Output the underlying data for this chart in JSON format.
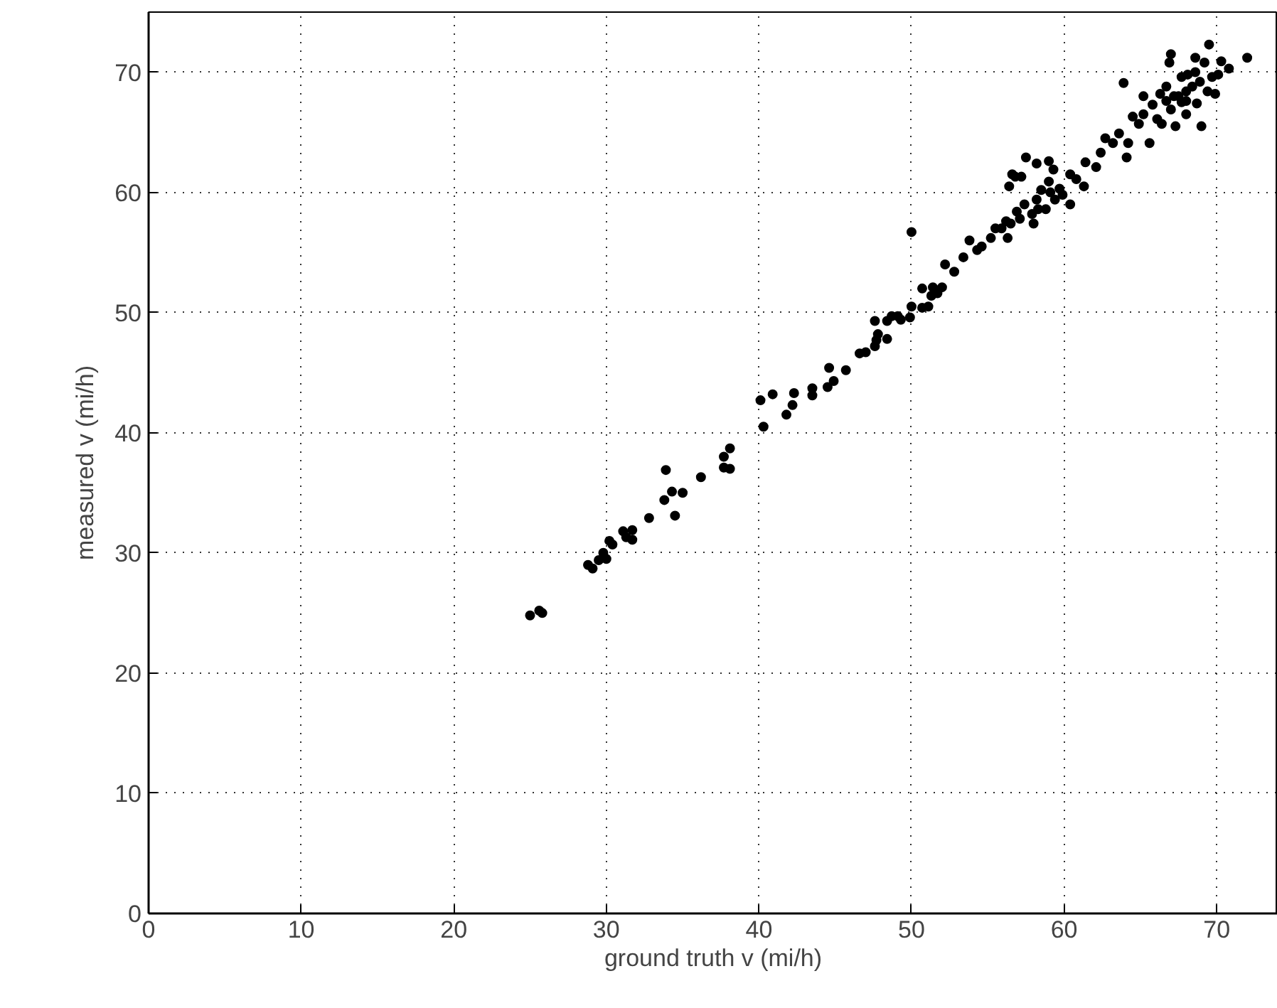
{
  "chart_data": {
    "type": "scatter",
    "xlabel": "ground truth v (mi/h)",
    "ylabel": "measured v (mi/h)",
    "x": [
      25.0,
      25.6,
      25.8,
      28.8,
      29.1,
      29.5,
      29.8,
      30.0,
      30.2,
      30.4,
      31.1,
      31.3,
      31.7,
      31.7,
      32.8,
      33.8,
      34.5,
      33.9,
      34.3,
      35.0,
      36.2,
      37.7,
      37.7,
      38.1,
      38.1,
      40.1,
      40.3,
      40.9,
      41.8,
      42.2,
      42.3,
      43.5,
      43.5,
      44.5,
      44.6,
      44.9,
      45.7,
      46.6,
      47.0,
      47.6,
      47.6,
      47.7,
      47.8,
      48.4,
      48.4,
      48.7,
      49.1,
      49.3,
      49.9,
      50.0,
      50.7,
      51.1,
      51.3,
      51.7,
      50.7,
      51.4,
      52.0,
      50.0,
      52.2,
      52.8,
      53.4,
      53.8,
      54.3,
      54.6,
      55.2,
      55.5,
      56.2,
      56.4,
      56.6,
      56.8,
      57.2,
      57.5,
      58.2,
      59.0,
      59.3,
      56.9,
      57.4,
      57.9,
      58.2,
      58.5,
      58.8,
      59.1,
      59.0,
      56.3,
      55.9,
      56.5,
      57.1,
      58.0,
      58.3,
      59.4,
      59.7,
      59.9,
      60.4,
      60.4,
      60.8,
      61.3,
      61.4,
      62.1,
      62.4,
      62.7,
      63.2,
      63.6,
      63.9,
      64.1,
      64.2,
      64.5,
      64.9,
      65.2,
      65.2,
      65.6,
      65.8,
      66.1,
      66.3,
      66.4,
      66.7,
      66.9,
      67.0,
      67.0,
      67.3,
      67.5,
      67.7,
      68.0,
      68.1,
      68.4,
      68.6,
      68.7,
      68.9,
      69.0,
      69.2,
      69.4,
      69.5,
      69.7,
      69.9,
      70.1,
      70.3,
      70.8,
      72.0,
      67.2,
      68.0,
      68.6,
      68.0,
      66.7,
      67.7
    ],
    "values": [
      24.8,
      25.2,
      25.0,
      29.0,
      28.7,
      29.4,
      30.0,
      29.5,
      31.0,
      30.7,
      31.8,
      31.3,
      31.9,
      31.1,
      32.9,
      34.4,
      33.1,
      36.9,
      35.1,
      35.0,
      36.3,
      38.0,
      37.1,
      37.0,
      38.7,
      42.7,
      40.5,
      43.2,
      41.5,
      42.3,
      43.3,
      43.7,
      43.1,
      43.8,
      45.4,
      44.3,
      45.2,
      46.6,
      46.7,
      47.2,
      49.3,
      47.7,
      48.2,
      47.8,
      49.3,
      49.7,
      49.7,
      49.4,
      49.6,
      50.5,
      50.4,
      50.5,
      51.4,
      51.6,
      52.0,
      52.1,
      52.1,
      56.7,
      54.0,
      53.4,
      54.6,
      56.0,
      55.2,
      55.5,
      56.2,
      57.0,
      57.6,
      60.5,
      61.5,
      61.3,
      61.3,
      62.9,
      62.4,
      62.6,
      61.9,
      58.4,
      59.0,
      58.2,
      59.4,
      60.2,
      58.6,
      60.0,
      60.9,
      56.2,
      57.0,
      57.4,
      57.8,
      57.4,
      58.6,
      59.4,
      60.3,
      59.8,
      59.0,
      61.5,
      61.1,
      60.5,
      62.5,
      62.1,
      63.3,
      64.5,
      64.1,
      64.9,
      69.1,
      62.9,
      64.1,
      66.3,
      65.7,
      66.5,
      68.0,
      64.1,
      67.3,
      66.1,
      68.2,
      65.7,
      68.8,
      70.8,
      71.5,
      66.9,
      65.5,
      68.0,
      69.6,
      66.5,
      69.8,
      68.8,
      71.2,
      67.4,
      69.2,
      65.5,
      70.8,
      68.4,
      72.3,
      69.6,
      68.2,
      69.8,
      70.9,
      70.3,
      71.2,
      68.0,
      68.4,
      70.0,
      67.6,
      67.6,
      67.5
    ],
    "color": "#000000",
    "marker": "circle",
    "xlim": [
      0,
      74
    ],
    "ylim": [
      0,
      75
    ],
    "xticks": [
      0,
      10,
      20,
      30,
      40,
      50,
      60,
      70
    ],
    "yticks": [
      0,
      10,
      20,
      30,
      40,
      50,
      60,
      70
    ],
    "grid": true
  }
}
